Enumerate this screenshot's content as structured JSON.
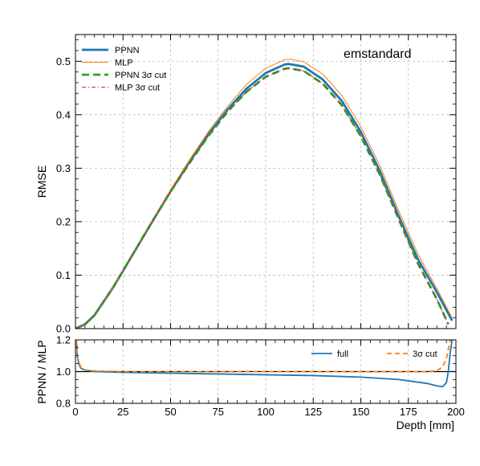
{
  "chart_data": [
    {
      "type": "line",
      "panel": "main",
      "annotation": "emstandard",
      "xlabel": "",
      "ylabel": "RMSE",
      "xlim": [
        0,
        200
      ],
      "ylim": [
        0,
        0.55
      ],
      "x_ticks": [
        0,
        25,
        50,
        75,
        100,
        125,
        150,
        175,
        200
      ],
      "y_ticks": [
        0.0,
        0.1,
        0.2,
        0.3,
        0.4,
        0.5
      ],
      "y_tick_labels": [
        "0.0",
        "0.1",
        "0.2",
        "0.3",
        "0.4",
        "0.5"
      ],
      "grid": true,
      "legend": "top-left",
      "series": [
        {
          "name": "PPNN",
          "color": "#1f77b4",
          "style": "solid-thick",
          "x": [
            0,
            5,
            10,
            20,
            30,
            40,
            50,
            60,
            70,
            80,
            90,
            100,
            110,
            112,
            120,
            130,
            140,
            150,
            160,
            170,
            180,
            190,
            198
          ],
          "y": [
            0.0,
            0.008,
            0.025,
            0.078,
            0.138,
            0.198,
            0.257,
            0.312,
            0.364,
            0.41,
            0.449,
            0.478,
            0.494,
            0.495,
            0.49,
            0.466,
            0.426,
            0.368,
            0.295,
            0.21,
            0.13,
            0.068,
            0.015
          ]
        },
        {
          "name": "MLP",
          "color": "#ff7f0e",
          "style": "solid-thin",
          "x": [
            0,
            5,
            10,
            20,
            30,
            40,
            50,
            60,
            70,
            80,
            90,
            100,
            110,
            113,
            120,
            130,
            140,
            150,
            160,
            170,
            180,
            190,
            198
          ],
          "y": [
            0.0,
            0.008,
            0.025,
            0.078,
            0.139,
            0.2,
            0.26,
            0.316,
            0.369,
            0.416,
            0.457,
            0.487,
            0.503,
            0.504,
            0.499,
            0.476,
            0.436,
            0.378,
            0.305,
            0.22,
            0.14,
            0.075,
            0.02
          ]
        },
        {
          "name": "PPNN 3σ cut",
          "color": "#2ca02c",
          "style": "dashed-thick",
          "x": [
            0,
            5,
            10,
            20,
            30,
            40,
            50,
            60,
            70,
            80,
            90,
            100,
            110,
            112,
            120,
            130,
            140,
            150,
            160,
            170,
            180,
            190,
            196
          ],
          "y": [
            0.0,
            0.008,
            0.025,
            0.078,
            0.138,
            0.198,
            0.256,
            0.31,
            0.361,
            0.406,
            0.443,
            0.471,
            0.486,
            0.487,
            0.482,
            0.458,
            0.418,
            0.36,
            0.288,
            0.204,
            0.122,
            0.055,
            0.008
          ]
        },
        {
          "name": "MLP 3σ cut",
          "color": "#d62728",
          "style": "dashdot-thin",
          "x": [
            0,
            5,
            10,
            20,
            30,
            40,
            50,
            60,
            70,
            80,
            90,
            100,
            110,
            112,
            120,
            130,
            140,
            150,
            160,
            170,
            180,
            190,
            196
          ],
          "y": [
            0.0,
            0.008,
            0.025,
            0.078,
            0.138,
            0.198,
            0.256,
            0.31,
            0.361,
            0.406,
            0.443,
            0.471,
            0.486,
            0.487,
            0.482,
            0.458,
            0.418,
            0.36,
            0.288,
            0.204,
            0.122,
            0.055,
            0.008
          ]
        }
      ]
    },
    {
      "type": "line",
      "panel": "ratio",
      "xlabel": "Depth [mm]",
      "ylabel": "PPNN / MLP",
      "xlim": [
        0,
        200
      ],
      "ylim": [
        0.8,
        1.2
      ],
      "x_ticks": [
        0,
        25,
        50,
        75,
        100,
        125,
        150,
        175,
        200
      ],
      "y_ticks": [
        0.8,
        1.0,
        1.2
      ],
      "y_tick_labels": [
        "0.8",
        "1.0",
        "1.2"
      ],
      "reference_line": 1.0,
      "grid": true,
      "legend": "top-right",
      "series": [
        {
          "name": "full",
          "color": "#1f77b4",
          "style": "solid",
          "x": [
            0.5,
            1,
            2,
            3,
            5,
            10,
            25,
            50,
            75,
            100,
            125,
            150,
            170,
            185,
            190,
            193,
            195,
            196,
            197,
            198
          ],
          "y": [
            1.2,
            1.09,
            1.04,
            1.02,
            1.01,
            1.0,
            0.995,
            0.99,
            0.985,
            0.98,
            0.975,
            0.965,
            0.95,
            0.925,
            0.91,
            0.905,
            0.93,
            1.0,
            1.12,
            1.2
          ]
        },
        {
          "name": "3σ cut",
          "color": "#ff7f0e",
          "style": "dashed",
          "x": [
            0.5,
            1,
            2,
            3,
            5,
            10,
            25,
            50,
            100,
            150,
            185,
            190,
            193,
            195,
            196,
            197
          ],
          "y": [
            1.2,
            1.1,
            1.05,
            1.025,
            1.01,
            1.005,
            1.0,
            1.0,
            1.0,
            1.0,
            1.0,
            1.005,
            1.03,
            1.08,
            1.14,
            1.2
          ]
        }
      ]
    }
  ]
}
